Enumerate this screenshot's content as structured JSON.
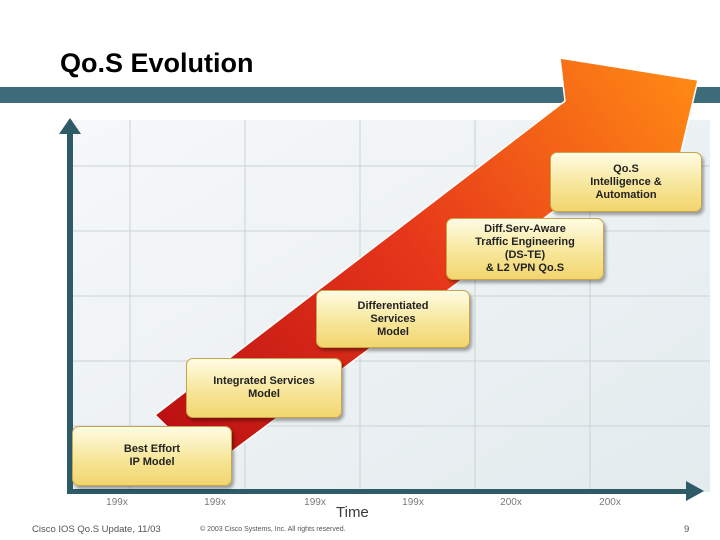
{
  "slide": {
    "title": "Qo.S Evolution",
    "corner_mark": "9"
  },
  "diagram": {
    "steps": [
      {
        "label": "Best Effort\nIP Model"
      },
      {
        "label": "Integrated Services\nModel"
      },
      {
        "label": "Differentiated\nServices\nModel"
      },
      {
        "label": "Diff.Serv-Aware\nTraffic Engineering\n(DS-TE)\n& L2 VPN Qo.S"
      },
      {
        "label": "Qo.S\nIntelligence &\nAutomation"
      }
    ],
    "x_ticks": [
      "199x",
      "199x",
      "199x",
      "199x",
      "200x",
      "200x"
    ],
    "x_axis_label": "Time"
  },
  "footer": {
    "left": "Cisco IOS Qo.S Update, 11/03",
    "copyright": "© 2003 Cisco Systems, Inc. All rights reserved.",
    "page_number": "9"
  },
  "colors": {
    "band": "#3d6b79",
    "axis": "#2d5b68",
    "arrow_start": "#b80d12",
    "arrow_end": "#ff8a14",
    "box_fill": "#f7e69a"
  }
}
